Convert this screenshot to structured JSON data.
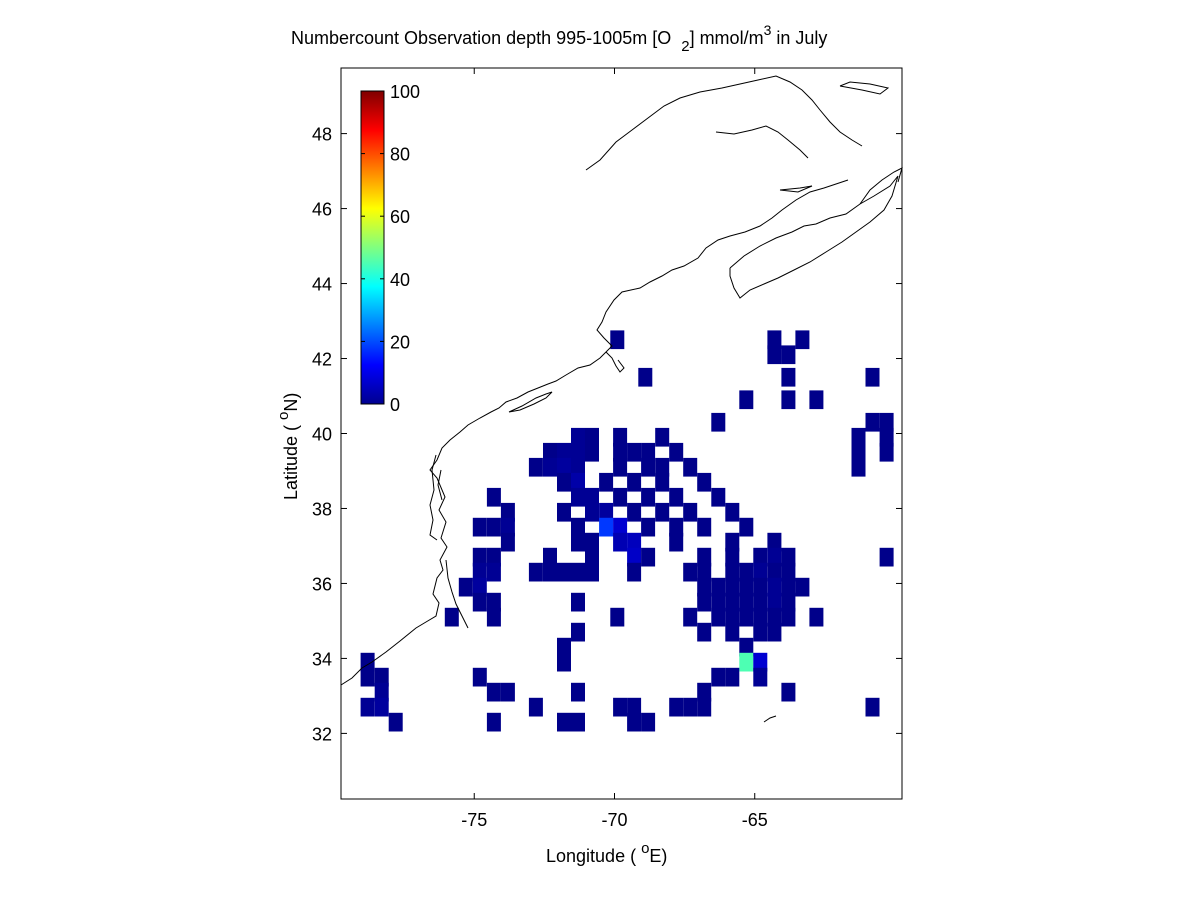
{
  "chart_data": {
    "type": "heatmap",
    "title_parts": [
      "Numbercount Observation depth 995-1005m [O",
      "2",
      "] mmol/m",
      "3",
      " in July"
    ],
    "xlabel_parts": [
      "Longitude ( ",
      "o",
      "E)"
    ],
    "ylabel_parts": [
      "Latitude ( ",
      "o",
      "N)"
    ],
    "xlim": [
      -79.75,
      -59.75
    ],
    "ylim": [
      30.25,
      49.75
    ],
    "xticks": [
      -75,
      -70,
      -65
    ],
    "xtick_labels": [
      "-75",
      "-70",
      "-65"
    ],
    "yticks": [
      32,
      34,
      36,
      38,
      40,
      42,
      44,
      46,
      48
    ],
    "ytick_labels": [
      "32",
      "34",
      "36",
      "38",
      "40",
      "42",
      "44",
      "46",
      "48"
    ],
    "colorbar": {
      "range": [
        0,
        100
      ],
      "ticks": [
        0,
        20,
        40,
        60,
        80,
        100
      ],
      "tick_labels": [
        "0",
        "20",
        "40",
        "60",
        "80",
        "100"
      ],
      "colormap": "jet",
      "placement": "top-left inside axes"
    },
    "cell_size_deg": 0.5,
    "values_note_default": 1,
    "cells": [
      [
        -69.9,
        42.5,
        1
      ],
      [
        -64.3,
        42.5,
        1
      ],
      [
        -63.3,
        42.5,
        1
      ],
      [
        -63.8,
        42.1,
        1
      ],
      [
        -64.3,
        42.1,
        1
      ],
      [
        -68.9,
        41.5,
        1
      ],
      [
        -63.8,
        41.5,
        1
      ],
      [
        -60.8,
        41.5,
        1
      ],
      [
        -65.3,
        40.9,
        1
      ],
      [
        -63.8,
        40.9,
        1
      ],
      [
        -62.8,
        40.9,
        1
      ],
      [
        -66.3,
        40.3,
        1
      ],
      [
        -60.8,
        40.3,
        1
      ],
      [
        -60.3,
        40.3,
        1
      ],
      [
        -71.3,
        39.9,
        2
      ],
      [
        -70.8,
        39.9,
        1
      ],
      [
        -69.8,
        39.9,
        1
      ],
      [
        -68.3,
        39.9,
        1
      ],
      [
        -61.3,
        39.9,
        1
      ],
      [
        -60.3,
        39.9,
        1
      ],
      [
        -72.3,
        39.5,
        1
      ],
      [
        -71.8,
        39.5,
        2
      ],
      [
        -71.3,
        39.5,
        2
      ],
      [
        -70.8,
        39.5,
        1
      ],
      [
        -69.8,
        39.5,
        1
      ],
      [
        -69.3,
        39.5,
        1
      ],
      [
        -68.8,
        39.5,
        1
      ],
      [
        -67.8,
        39.5,
        1
      ],
      [
        -61.3,
        39.5,
        1
      ],
      [
        -60.3,
        39.5,
        1
      ],
      [
        -72.8,
        39.1,
        1
      ],
      [
        -72.3,
        39.1,
        2
      ],
      [
        -71.8,
        39.1,
        3
      ],
      [
        -71.3,
        39.1,
        2
      ],
      [
        -69.8,
        39.1,
        1
      ],
      [
        -68.8,
        39.1,
        1
      ],
      [
        -68.3,
        39.1,
        1
      ],
      [
        -67.3,
        39.1,
        1
      ],
      [
        -61.3,
        39.1,
        1
      ],
      [
        -71.8,
        38.7,
        1
      ],
      [
        -71.3,
        38.7,
        4
      ],
      [
        -70.3,
        38.7,
        1
      ],
      [
        -69.3,
        38.7,
        1
      ],
      [
        -68.3,
        38.7,
        1
      ],
      [
        -66.8,
        38.7,
        1
      ],
      [
        -74.3,
        38.3,
        1
      ],
      [
        -71.3,
        38.3,
        2
      ],
      [
        -70.8,
        38.3,
        2
      ],
      [
        -69.8,
        38.3,
        1
      ],
      [
        -68.8,
        38.3,
        1
      ],
      [
        -67.8,
        38.3,
        1
      ],
      [
        -66.3,
        38.3,
        1
      ],
      [
        -73.8,
        37.9,
        1
      ],
      [
        -71.8,
        37.9,
        1
      ],
      [
        -70.8,
        37.9,
        2
      ],
      [
        -70.3,
        37.9,
        3
      ],
      [
        -69.3,
        37.9,
        1
      ],
      [
        -68.3,
        37.9,
        1
      ],
      [
        -67.3,
        37.9,
        1
      ],
      [
        -65.8,
        37.9,
        1
      ],
      [
        -74.8,
        37.5,
        1
      ],
      [
        -74.3,
        37.5,
        1
      ],
      [
        -73.8,
        37.5,
        2
      ],
      [
        -71.3,
        37.5,
        1
      ],
      [
        -70.3,
        37.5,
        18
      ],
      [
        -69.8,
        37.5,
        8
      ],
      [
        -68.8,
        37.5,
        1
      ],
      [
        -67.8,
        37.5,
        1
      ],
      [
        -66.8,
        37.5,
        1
      ],
      [
        -65.3,
        37.5,
        1
      ],
      [
        -73.8,
        37.1,
        1
      ],
      [
        -71.3,
        37.1,
        1
      ],
      [
        -70.8,
        37.1,
        1
      ],
      [
        -69.8,
        37.1,
        5
      ],
      [
        -69.3,
        37.1,
        6
      ],
      [
        -67.8,
        37.1,
        1
      ],
      [
        -65.8,
        37.1,
        1
      ],
      [
        -64.3,
        37.1,
        1
      ],
      [
        -74.8,
        36.7,
        1
      ],
      [
        -74.3,
        36.7,
        1
      ],
      [
        -72.3,
        36.7,
        1
      ],
      [
        -70.8,
        36.7,
        1
      ],
      [
        -69.3,
        36.7,
        7
      ],
      [
        -68.8,
        36.7,
        1
      ],
      [
        -66.8,
        36.7,
        1
      ],
      [
        -65.8,
        36.7,
        1
      ],
      [
        -64.8,
        36.7,
        1
      ],
      [
        -64.3,
        36.7,
        2
      ],
      [
        -63.8,
        36.7,
        1
      ],
      [
        -60.3,
        36.7,
        1
      ],
      [
        -74.8,
        36.3,
        2
      ],
      [
        -74.3,
        36.3,
        2
      ],
      [
        -72.8,
        36.3,
        1
      ],
      [
        -72.3,
        36.3,
        1
      ],
      [
        -71.8,
        36.3,
        1
      ],
      [
        -71.3,
        36.3,
        1
      ],
      [
        -70.8,
        36.3,
        1
      ],
      [
        -69.3,
        36.3,
        1
      ],
      [
        -67.3,
        36.3,
        1
      ],
      [
        -66.8,
        36.3,
        1
      ],
      [
        -65.8,
        36.3,
        1
      ],
      [
        -65.3,
        36.3,
        1
      ],
      [
        -64.8,
        36.3,
        2
      ],
      [
        -64.3,
        36.3,
        1
      ],
      [
        -63.8,
        36.3,
        1
      ],
      [
        -75.3,
        35.9,
        1
      ],
      [
        -74.8,
        35.9,
        3
      ],
      [
        -66.8,
        35.9,
        1
      ],
      [
        -66.3,
        35.9,
        1
      ],
      [
        -65.8,
        35.9,
        1
      ],
      [
        -65.3,
        35.9,
        1
      ],
      [
        -64.8,
        35.9,
        1
      ],
      [
        -64.3,
        35.9,
        2
      ],
      [
        -63.8,
        35.9,
        1
      ],
      [
        -63.3,
        35.9,
        1
      ],
      [
        -74.8,
        35.5,
        1
      ],
      [
        -74.3,
        35.5,
        1
      ],
      [
        -71.3,
        35.5,
        1
      ],
      [
        -66.8,
        35.5,
        1
      ],
      [
        -66.3,
        35.5,
        1
      ],
      [
        -65.8,
        35.5,
        1
      ],
      [
        -65.3,
        35.5,
        1
      ],
      [
        -64.8,
        35.5,
        1
      ],
      [
        -64.3,
        35.5,
        2
      ],
      [
        -63.8,
        35.5,
        1
      ],
      [
        -75.8,
        35.1,
        1
      ],
      [
        -74.3,
        35.1,
        1
      ],
      [
        -69.9,
        35.1,
        1
      ],
      [
        -67.3,
        35.1,
        1
      ],
      [
        -66.3,
        35.1,
        1
      ],
      [
        -65.8,
        35.1,
        1
      ],
      [
        -65.3,
        35.1,
        1
      ],
      [
        -64.8,
        35.1,
        1
      ],
      [
        -64.3,
        35.1,
        1
      ],
      [
        -63.8,
        35.1,
        1
      ],
      [
        -62.8,
        35.1,
        1
      ],
      [
        -71.3,
        34.7,
        1
      ],
      [
        -66.8,
        34.7,
        1
      ],
      [
        -65.8,
        34.7,
        1
      ],
      [
        -64.8,
        34.7,
        1
      ],
      [
        -64.3,
        34.7,
        1
      ],
      [
        -71.8,
        34.3,
        1
      ],
      [
        -65.3,
        34.3,
        1
      ],
      [
        -78.8,
        33.9,
        1
      ],
      [
        -71.8,
        33.9,
        1
      ],
      [
        -65.3,
        33.9,
        45
      ],
      [
        -64.8,
        33.9,
        8
      ],
      [
        -78.8,
        33.5,
        1
      ],
      [
        -78.3,
        33.5,
        1
      ],
      [
        -74.8,
        33.5,
        1
      ],
      [
        -66.3,
        33.5,
        1
      ],
      [
        -65.8,
        33.5,
        1
      ],
      [
        -64.8,
        33.5,
        2
      ],
      [
        -78.3,
        33.1,
        2
      ],
      [
        -74.3,
        33.1,
        1
      ],
      [
        -73.8,
        33.1,
        1
      ],
      [
        -71.3,
        33.1,
        1
      ],
      [
        -66.8,
        33.1,
        1
      ],
      [
        -63.8,
        33.1,
        1
      ],
      [
        -78.8,
        32.7,
        2
      ],
      [
        -78.3,
        32.7,
        3
      ],
      [
        -72.8,
        32.7,
        1
      ],
      [
        -69.8,
        32.7,
        1
      ],
      [
        -69.3,
        32.7,
        1
      ],
      [
        -67.8,
        32.7,
        1
      ],
      [
        -67.3,
        32.7,
        1
      ],
      [
        -66.8,
        32.7,
        1
      ],
      [
        -60.8,
        32.7,
        1
      ],
      [
        -77.8,
        32.3,
        1
      ],
      [
        -74.3,
        32.3,
        1
      ],
      [
        -71.8,
        32.3,
        1
      ],
      [
        -71.3,
        32.3,
        1
      ],
      [
        -69.3,
        32.3,
        1
      ],
      [
        -68.8,
        32.3,
        1
      ]
    ]
  }
}
